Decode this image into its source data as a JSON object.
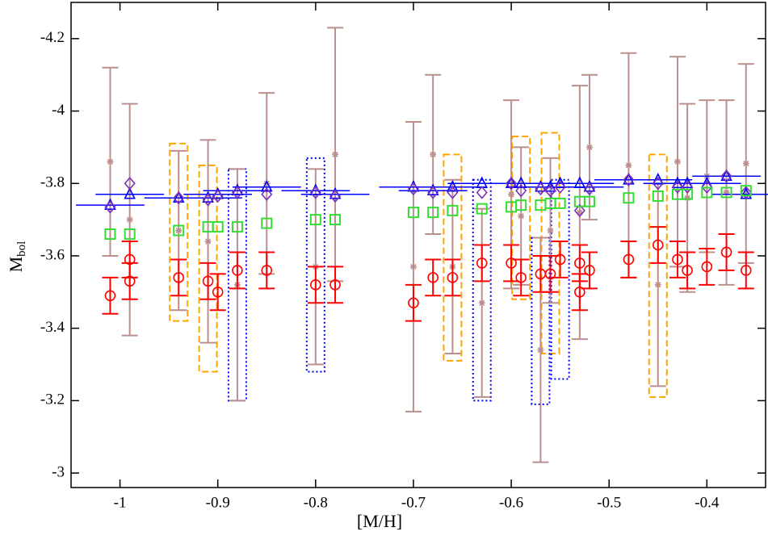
{
  "chart_data": {
    "type": "scatter",
    "x_label": "[M/H]",
    "y_label": "M",
    "y_label_sub": "bol",
    "xlim": [
      -1.05,
      -0.34
    ],
    "ylim": [
      -2.96,
      -4.3
    ],
    "xticks": [
      -1,
      -0.9,
      -0.8,
      -0.7,
      -0.6,
      -0.5,
      -0.4
    ],
    "yticks": [
      -4.2,
      -4,
      -3.8,
      -3.6,
      -3.4,
      -3.2,
      -3
    ],
    "series": [
      {
        "marker": "star",
        "color": "#bc8f8f",
        "x": [
          -1.01,
          -0.99,
          -0.94,
          -0.91,
          -0.88,
          -0.85,
          -0.8,
          -0.78,
          -0.7,
          -0.68,
          -0.66,
          -0.63,
          -0.6,
          -0.59,
          -0.57,
          -0.56,
          -0.53,
          -0.52,
          -0.48,
          -0.45,
          -0.43,
          -0.42,
          -0.4,
          -0.38,
          -0.36
        ],
        "values": [
          -3.86,
          -3.7,
          -3.67,
          -3.64,
          -3.52,
          -3.8,
          -3.57,
          -3.88,
          -3.57,
          -3.88,
          -3.57,
          -3.47,
          -3.77,
          -3.71,
          -3.34,
          -3.67,
          -3.72,
          -3.9,
          -3.85,
          -3.52,
          -3.86,
          -3.76,
          -3.82,
          -3.775,
          -3.855
        ],
        "errors": [
          0.26,
          0.32,
          0.22,
          0.28,
          0.32,
          0.25,
          0.27,
          0.35,
          0.4,
          0.22,
          0.24,
          0.26,
          0.26,
          0.19,
          0.31,
          0.2,
          0.35,
          0.2,
          0.31,
          0.28,
          0.29,
          0.26,
          0.21,
          0.255,
          0.275
        ]
      },
      {
        "marker": "circle",
        "color": "#ff0000",
        "x": [
          -1.01,
          -0.99,
          -0.99,
          -0.94,
          -0.91,
          -0.9,
          -0.88,
          -0.85,
          -0.8,
          -0.78,
          -0.7,
          -0.68,
          -0.66,
          -0.63,
          -0.6,
          -0.59,
          -0.57,
          -0.56,
          -0.55,
          -0.53,
          -0.53,
          -0.52,
          -0.48,
          -0.45,
          -0.43,
          -0.42,
          -0.4,
          -0.38,
          -0.36
        ],
        "values": [
          -3.49,
          -3.53,
          -3.59,
          -3.54,
          -3.53,
          -3.5,
          -3.56,
          -3.56,
          -3.52,
          -3.52,
          -3.47,
          -3.54,
          -3.54,
          -3.58,
          -3.58,
          -3.54,
          -3.55,
          -3.55,
          -3.59,
          -3.58,
          -3.5,
          -3.56,
          -3.59,
          -3.63,
          -3.59,
          -3.56,
          -3.57,
          -3.61,
          -3.56
        ],
        "errors": [
          0.05,
          0.05,
          0.05,
          0.05,
          0.05,
          0.05,
          0.05,
          0.05,
          0.05,
          0.05,
          0.05,
          0.05,
          0.05,
          0.05,
          0.05,
          0.05,
          0.05,
          0.05,
          0.05,
          0.05,
          0.05,
          0.05,
          0.05,
          0.05,
          0.05,
          0.05,
          0.05,
          0.05,
          0.05
        ]
      },
      {
        "marker": "triangle",
        "color": "#0000ff",
        "xerr": 0.035,
        "x": [
          -1.01,
          -0.99,
          -0.94,
          -0.91,
          -0.9,
          -0.88,
          -0.85,
          -0.8,
          -0.78,
          -0.7,
          -0.68,
          -0.66,
          -0.63,
          -0.6,
          -0.59,
          -0.57,
          -0.56,
          -0.55,
          -0.53,
          -0.52,
          -0.48,
          -0.45,
          -0.43,
          -0.42,
          -0.4,
          -0.38,
          -0.36
        ],
        "values": [
          -3.74,
          -3.77,
          -3.76,
          -3.76,
          -3.77,
          -3.78,
          -3.79,
          -3.78,
          -3.77,
          -3.79,
          -3.78,
          -3.79,
          -3.8,
          -3.8,
          -3.8,
          -3.79,
          -3.79,
          -3.8,
          -3.8,
          -3.79,
          -3.81,
          -3.81,
          -3.8,
          -3.8,
          -3.8,
          -3.82,
          -3.77
        ]
      },
      {
        "marker": "diamond",
        "color": "#7b2fbe",
        "x": [
          -1.01,
          -0.99,
          -0.94,
          -0.91,
          -0.9,
          -0.88,
          -0.85,
          -0.8,
          -0.78,
          -0.7,
          -0.68,
          -0.66,
          -0.63,
          -0.6,
          -0.59,
          -0.57,
          -0.56,
          -0.55,
          -0.53,
          -0.52,
          -0.48,
          -0.45,
          -0.43,
          -0.42,
          -0.4,
          -0.38,
          -0.36
        ],
        "values": [
          -3.735,
          -3.8,
          -3.76,
          -3.755,
          -3.765,
          -3.775,
          -3.77,
          -3.775,
          -3.765,
          -3.785,
          -3.775,
          -3.775,
          -3.775,
          -3.8,
          -3.78,
          -3.785,
          -3.78,
          -3.79,
          -3.725,
          -3.785,
          -3.81,
          -3.8,
          -3.79,
          -3.79,
          -3.79,
          -3.82,
          -3.775
        ]
      },
      {
        "marker": "square",
        "color": "#33dd33",
        "x": [
          -1.01,
          -0.99,
          -0.94,
          -0.91,
          -0.9,
          -0.88,
          -0.85,
          -0.8,
          -0.78,
          -0.7,
          -0.68,
          -0.66,
          -0.63,
          -0.6,
          -0.59,
          -0.57,
          -0.56,
          -0.55,
          -0.53,
          -0.52,
          -0.48,
          -0.45,
          -0.43,
          -0.42,
          -0.4,
          -0.38,
          -0.36
        ],
        "values": [
          -3.66,
          -3.66,
          -3.67,
          -3.68,
          -3.68,
          -3.68,
          -3.69,
          -3.7,
          -3.7,
          -3.72,
          -3.72,
          -3.725,
          -3.73,
          -3.735,
          -3.74,
          -3.74,
          -3.745,
          -3.745,
          -3.75,
          -3.75,
          -3.76,
          -3.765,
          -3.77,
          -3.77,
          -3.775,
          -3.775,
          -3.78
        ]
      }
    ],
    "boxes": [
      {
        "style": "dashed",
        "color": "#ffa500",
        "x": [
          -0.94,
          -0.91,
          -0.66,
          -0.59,
          -0.56,
          -0.45
        ],
        "low": [
          -3.91,
          -3.85,
          -3.88,
          -3.93,
          -3.94,
          -3.88
        ],
        "high": [
          -3.42,
          -3.28,
          -3.31,
          -3.48,
          -3.33,
          -3.21
        ]
      },
      {
        "style": "dotted",
        "color": "#0000ff",
        "x": [
          -0.88,
          -0.8,
          -0.63,
          -0.57,
          -0.55
        ],
        "low": [
          -3.84,
          -3.87,
          -3.81,
          -3.65,
          -3.81
        ],
        "high": [
          -3.2,
          -3.28,
          -3.2,
          -3.19,
          -3.26
        ]
      }
    ]
  }
}
